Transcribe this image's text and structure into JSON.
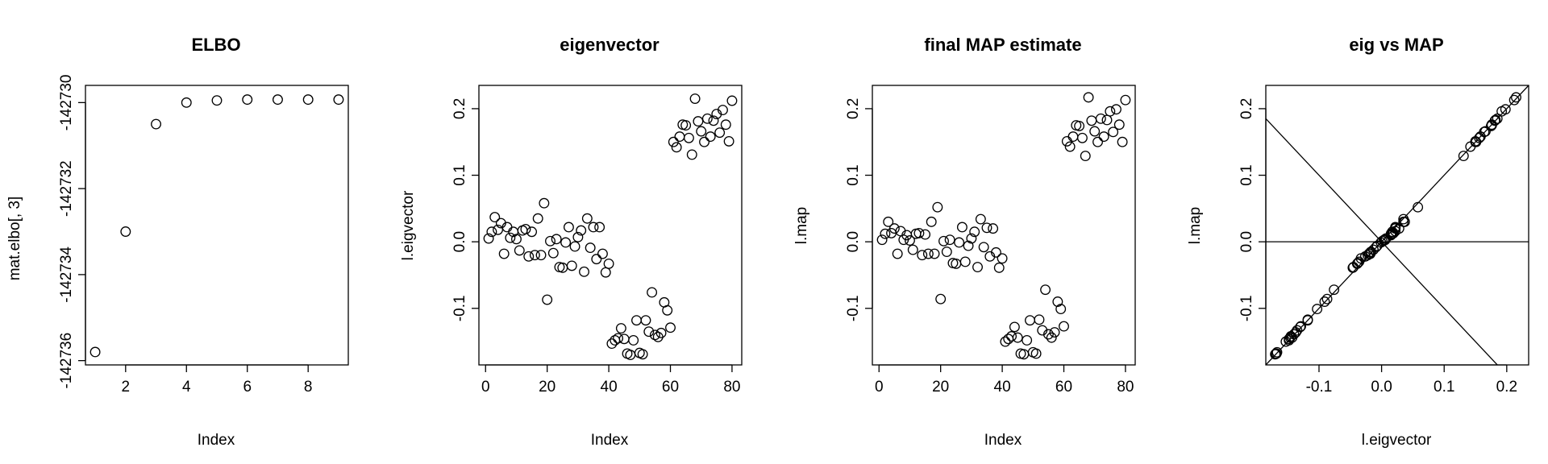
{
  "chart_data": [
    {
      "type": "scatter",
      "title": "ELBO",
      "xlabel": "Index",
      "ylabel": "mat.elbo[, 3]",
      "xlim": [
        0.68,
        9.32
      ],
      "ylim": [
        -142736.1,
        -142729.6
      ],
      "xticks": [
        2,
        4,
        6,
        8
      ],
      "yticks": [
        -142736,
        -142734,
        -142732,
        -142730
      ],
      "ytick_labels": [
        "-142736",
        "-142734",
        "-142732",
        "-142730"
      ],
      "x": [
        1,
        2,
        3,
        4,
        5,
        6,
        7,
        8,
        9
      ],
      "y": [
        -142735.8,
        -142733.0,
        -142730.5,
        -142730.0,
        -142729.95,
        -142729.93,
        -142729.93,
        -142729.93,
        -142729.93
      ]
    },
    {
      "type": "scatter",
      "title": "eigenvector",
      "xlabel": "Index",
      "ylabel": "l.eigvector",
      "xlim": [
        -2.16,
        83.16
      ],
      "ylim": [
        -0.185,
        0.235
      ],
      "xticks": [
        0,
        20,
        40,
        60,
        80
      ],
      "yticks": [
        -0.1,
        0.0,
        0.1,
        0.2
      ],
      "ytick_labels": [
        "-0.1",
        "0.0",
        "0.1",
        "0.2"
      ],
      "x": [
        1,
        2,
        3,
        4,
        5,
        6,
        7,
        8,
        9,
        10,
        11,
        12,
        13,
        14,
        15,
        16,
        17,
        18,
        19,
        20,
        21,
        22,
        23,
        24,
        25,
        26,
        27,
        28,
        29,
        30,
        31,
        32,
        33,
        34,
        35,
        36,
        37,
        38,
        39,
        40,
        41,
        42,
        43,
        44,
        45,
        46,
        47,
        48,
        49,
        50,
        51,
        52,
        53,
        54,
        55,
        56,
        57,
        58,
        59,
        60,
        61,
        62,
        63,
        64,
        65,
        66,
        67,
        68,
        69,
        70,
        71,
        72,
        73,
        74,
        75,
        76,
        77,
        78,
        79,
        80
      ],
      "y": [
        0.005,
        0.015,
        0.037,
        0.018,
        0.028,
        -0.018,
        0.022,
        0.006,
        0.015,
        0.004,
        -0.013,
        0.017,
        0.019,
        -0.022,
        0.015,
        -0.02,
        0.035,
        -0.02,
        0.058,
        -0.087,
        0.001,
        -0.017,
        0.004,
        -0.038,
        -0.039,
        -0.001,
        0.022,
        -0.036,
        -0.007,
        0.007,
        0.017,
        -0.045,
        0.035,
        -0.009,
        0.022,
        -0.026,
        0.022,
        -0.018,
        -0.046,
        -0.033,
        -0.153,
        -0.148,
        -0.145,
        -0.13,
        -0.146,
        -0.168,
        -0.17,
        -0.148,
        -0.118,
        -0.167,
        -0.169,
        -0.118,
        -0.135,
        -0.076,
        -0.14,
        -0.143,
        -0.137,
        -0.091,
        -0.103,
        -0.129,
        0.15,
        0.142,
        0.158,
        0.176,
        0.175,
        0.156,
        0.131,
        0.215,
        0.181,
        0.166,
        0.15,
        0.185,
        0.158,
        0.182,
        0.192,
        0.164,
        0.198,
        0.176,
        0.151,
        0.212
      ]
    },
    {
      "type": "scatter",
      "title": "final MAP estimate",
      "xlabel": "Index",
      "ylabel": "l.map",
      "xlim": [
        -2.16,
        83.16
      ],
      "ylim": [
        -0.185,
        0.235
      ],
      "xticks": [
        0,
        20,
        40,
        60,
        80
      ],
      "yticks": [
        -0.1,
        0.0,
        0.1,
        0.2
      ],
      "ytick_labels": [
        "-0.1",
        "0.0",
        "0.1",
        "0.2"
      ],
      "x": [
        1,
        2,
        3,
        4,
        5,
        6,
        7,
        8,
        9,
        10,
        11,
        12,
        13,
        14,
        15,
        16,
        17,
        18,
        19,
        20,
        21,
        22,
        23,
        24,
        25,
        26,
        27,
        28,
        29,
        30,
        31,
        32,
        33,
        34,
        35,
        36,
        37,
        38,
        39,
        40,
        41,
        42,
        43,
        44,
        45,
        46,
        47,
        48,
        49,
        50,
        51,
        52,
        53,
        54,
        55,
        56,
        57,
        58,
        59,
        60,
        61,
        62,
        63,
        64,
        65,
        66,
        67,
        68,
        69,
        70,
        71,
        72,
        73,
        74,
        75,
        76,
        77,
        78,
        79,
        80
      ],
      "y": [
        0.003,
        0.012,
        0.03,
        0.013,
        0.02,
        -0.018,
        0.016,
        0.003,
        0.01,
        0.002,
        -0.012,
        0.012,
        0.013,
        -0.02,
        0.011,
        -0.018,
        0.03,
        -0.018,
        0.052,
        -0.086,
        0.001,
        -0.015,
        0.003,
        -0.032,
        -0.033,
        -0.001,
        0.022,
        -0.03,
        -0.006,
        0.005,
        0.015,
        -0.038,
        0.034,
        -0.008,
        0.021,
        -0.022,
        0.02,
        -0.016,
        -0.039,
        -0.025,
        -0.15,
        -0.146,
        -0.142,
        -0.128,
        -0.144,
        -0.168,
        -0.169,
        -0.148,
        -0.118,
        -0.166,
        -0.168,
        -0.117,
        -0.133,
        -0.072,
        -0.139,
        -0.144,
        -0.136,
        -0.09,
        -0.101,
        -0.127,
        0.151,
        0.143,
        0.158,
        0.175,
        0.174,
        0.156,
        0.129,
        0.217,
        0.182,
        0.166,
        0.15,
        0.185,
        0.158,
        0.183,
        0.196,
        0.165,
        0.199,
        0.176,
        0.15,
        0.213
      ]
    },
    {
      "type": "scatter",
      "title": "eig vs MAP",
      "xlabel": "l.eigvector",
      "ylabel": "l.map",
      "xlim": [
        -0.185,
        0.235
      ],
      "ylim": [
        -0.185,
        0.235
      ],
      "xticks": [
        -0.1,
        0.0,
        0.1,
        0.2
      ],
      "xtick_labels": [
        "-0.1",
        "0.0",
        "0.1",
        "0.2"
      ],
      "yticks": [
        -0.1,
        0.0,
        0.1,
        0.2
      ],
      "ytick_labels": [
        "-0.1",
        "0.0",
        "0.1",
        "0.2"
      ],
      "lines": [
        {
          "kind": "abline",
          "intercept": 0,
          "slope": 1
        },
        {
          "kind": "abline",
          "intercept": 0,
          "slope": -1
        },
        {
          "kind": "h",
          "value": 0
        }
      ]
    }
  ]
}
